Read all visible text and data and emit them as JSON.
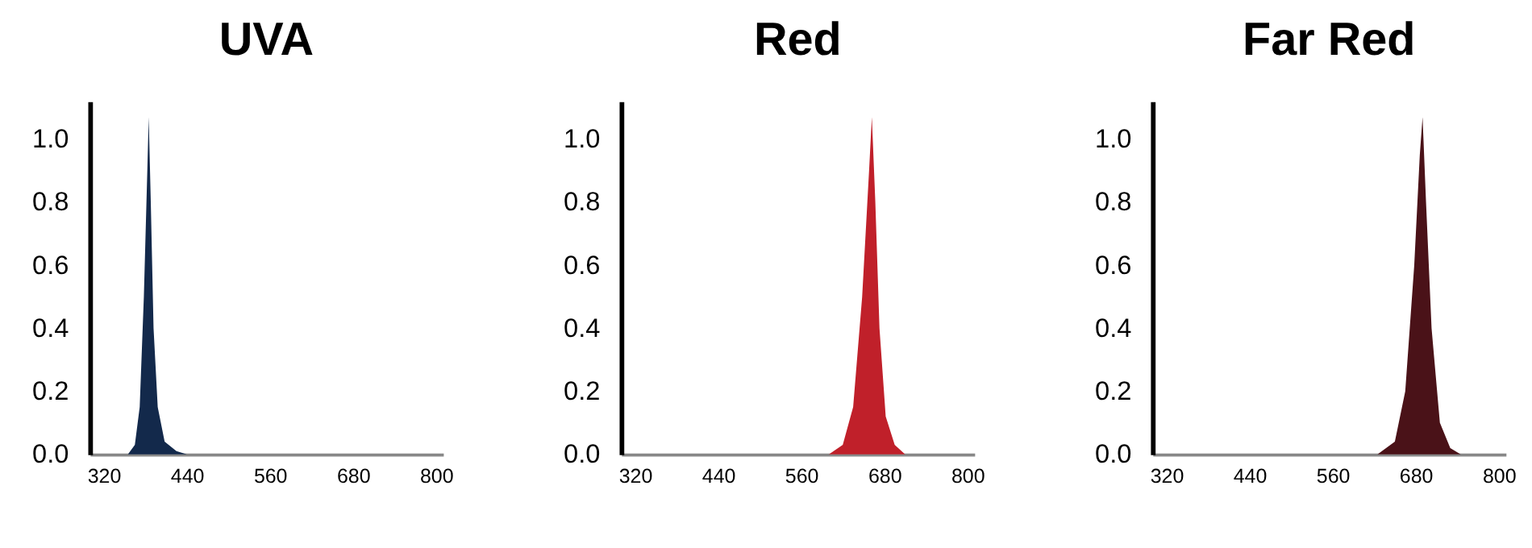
{
  "chart_data": [
    {
      "type": "area",
      "title": "UVA",
      "color": "#13294b",
      "grid": false,
      "x": [
        300,
        355,
        365,
        372,
        378,
        383,
        385,
        388,
        392,
        398,
        408,
        425,
        440,
        810
      ],
      "values": [
        0,
        0,
        0.03,
        0.15,
        0.5,
        0.9,
        1.07,
        0.8,
        0.4,
        0.15,
        0.04,
        0.01,
        0,
        0
      ],
      "xlim": [
        300,
        810
      ],
      "xticks": [
        320,
        440,
        560,
        680,
        800
      ],
      "ylim": [
        0,
        1.12
      ],
      "yticks": [
        {
          "value": 0,
          "label": "0.0"
        },
        {
          "value": 0.2,
          "label": "0.2"
        },
        {
          "value": 0.4,
          "label": "0.4"
        },
        {
          "value": 0.6,
          "label": "0.6"
        },
        {
          "value": 0.8,
          "label": "0.8"
        },
        {
          "value": 1,
          "label": "1.0"
        }
      ]
    },
    {
      "type": "area",
      "title": "Red",
      "color": "#c0202a",
      "grid": false,
      "x": [
        300,
        600,
        620,
        635,
        648,
        658,
        662,
        667,
        673,
        682,
        695,
        710,
        810
      ],
      "values": [
        0,
        0,
        0.03,
        0.15,
        0.5,
        0.9,
        1.07,
        0.8,
        0.4,
        0.12,
        0.03,
        0,
        0
      ],
      "xlim": [
        300,
        810
      ],
      "xticks": [
        320,
        440,
        560,
        680,
        800
      ],
      "ylim": [
        0,
        1.12
      ],
      "yticks": [
        {
          "value": 0,
          "label": "0.0"
        },
        {
          "value": 0.2,
          "label": "0.2"
        },
        {
          "value": 0.4,
          "label": "0.4"
        },
        {
          "value": 0.6,
          "label": "0.6"
        },
        {
          "value": 0.8,
          "label": "0.8"
        },
        {
          "value": 1,
          "label": "1.0"
        }
      ]
    },
    {
      "type": "area",
      "title": "Far Red",
      "color": "#4a1218",
      "grid": false,
      "x": [
        300,
        625,
        650,
        665,
        678,
        686,
        690,
        695,
        703,
        715,
        730,
        745,
        810
      ],
      "values": [
        0,
        0,
        0.04,
        0.2,
        0.6,
        0.95,
        1.07,
        0.8,
        0.4,
        0.1,
        0.02,
        0,
        0
      ],
      "xlim": [
        300,
        810
      ],
      "xticks": [
        320,
        440,
        560,
        680,
        800
      ],
      "ylim": [
        0,
        1.12
      ],
      "yticks": [
        {
          "value": 0,
          "label": "0.0"
        },
        {
          "value": 0.2,
          "label": "0.2"
        },
        {
          "value": 0.4,
          "label": "0.4"
        },
        {
          "value": 0.6,
          "label": "0.6"
        },
        {
          "value": 0.8,
          "label": "0.8"
        },
        {
          "value": 1,
          "label": "1.0"
        }
      ]
    }
  ]
}
